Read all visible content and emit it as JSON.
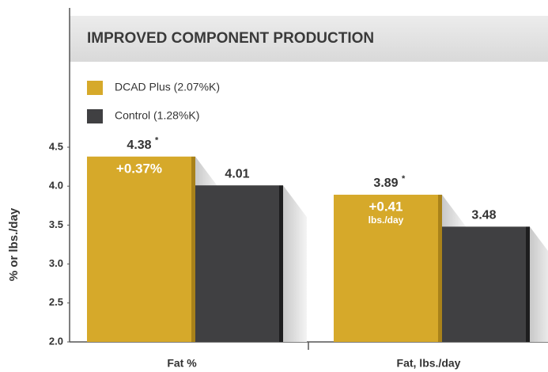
{
  "chart_data": {
    "type": "bar",
    "title": "IMPROVED COMPONENT PRODUCTION",
    "y_label": "% or lbs./day",
    "categories": [
      "Fat %",
      "Fat, lbs./day"
    ],
    "series": [
      {
        "name": "DCAD Plus (2.07%K)",
        "color": "#d6a92a",
        "values": [
          4.38,
          3.89
        ]
      },
      {
        "name": "Control (1.28%K)",
        "color": "#404042",
        "values": [
          4.01,
          3.48
        ]
      }
    ],
    "significance_mark": "*",
    "differences": [
      [
        "+0.37%"
      ],
      [
        "+0.41",
        "lbs./day"
      ]
    ],
    "ylim": [
      2.0,
      4.5
    ],
    "yticks": [
      {
        "value": 2,
        "label": "2.0"
      },
      2.5,
      {
        "value": 3,
        "label": "3.0"
      },
      3.5,
      {
        "value": 4,
        "label": "4.0"
      },
      4.5
    ],
    "legend": "top-left"
  }
}
